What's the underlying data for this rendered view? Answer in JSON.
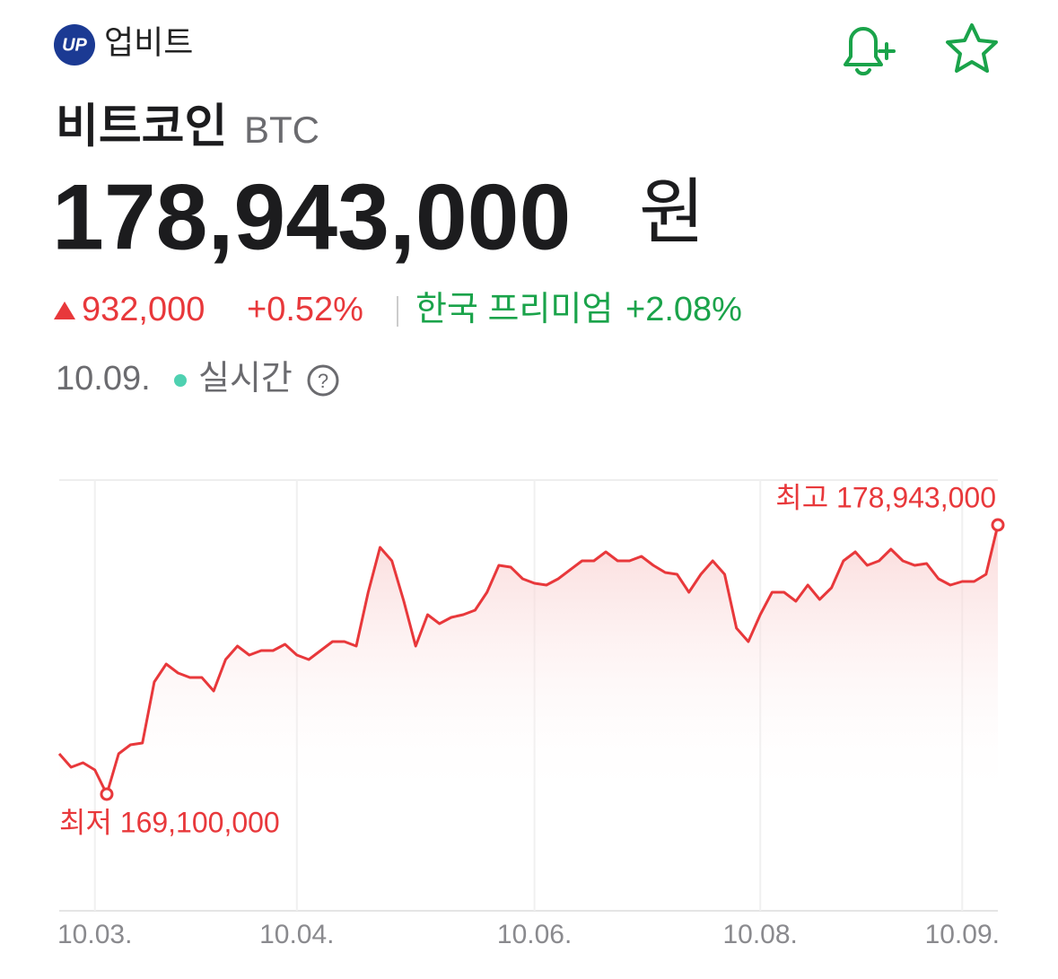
{
  "header": {
    "logo_text": "UP",
    "brand": "업비트"
  },
  "asset": {
    "name": "비트코인",
    "symbol": "BTC",
    "price": "178,943,000",
    "unit": "원"
  },
  "change": {
    "amount": "932,000",
    "percent": "+0.52%",
    "premium_label": "한국 프리미엄",
    "premium_value": "+2.08%"
  },
  "status": {
    "date": "10.09.",
    "live": "실시간"
  },
  "chart_data": {
    "type": "line",
    "color": "#e8383b",
    "grid": true,
    "annotations": [
      {
        "text": "최고 178,943,000"
      },
      {
        "text": "최저 169,100,000"
      }
    ],
    "categories": [
      null,
      null,
      null,
      "10.03.",
      null,
      null,
      null,
      null,
      null,
      null,
      null,
      null,
      null,
      null,
      null,
      null,
      null,
      null,
      null,
      null,
      "10.04.",
      null,
      null,
      null,
      null,
      null,
      null,
      null,
      null,
      null,
      null,
      null,
      null,
      null,
      null,
      null,
      null,
      null,
      null,
      null,
      "10.06.",
      null,
      null,
      null,
      null,
      null,
      null,
      null,
      null,
      null,
      null,
      null,
      null,
      null,
      null,
      null,
      null,
      null,
      null,
      "10.08.",
      null,
      null,
      null,
      null,
      null,
      null,
      null,
      null,
      null,
      null,
      null,
      null,
      null,
      null,
      null,
      null,
      "10.09.",
      null,
      null,
      null
    ],
    "values": [
      170576000,
      170084000,
      170248000,
      169986000,
      169100000,
      170576000,
      170905000,
      170970000,
      173201000,
      173857000,
      173529000,
      173365000,
      173365000,
      172873000,
      174022000,
      174514000,
      174186000,
      174350000,
      174350000,
      174579000,
      174186000,
      174022000,
      174350000,
      174678000,
      174678000,
      174514000,
      176482000,
      178123000,
      177631000,
      176154000,
      174514000,
      175662000,
      175334000,
      175564000,
      175662000,
      175826000,
      176482000,
      177467000,
      177401000,
      176974000,
      176810000,
      176745000,
      176974000,
      177303000,
      177631000,
      177631000,
      177959000,
      177631000,
      177631000,
      177795000,
      177467000,
      177204000,
      177138000,
      176482000,
      177138000,
      177631000,
      177138000,
      175170000,
      174678000,
      175662000,
      176482000,
      176482000,
      176154000,
      176745000,
      176220000,
      176646000,
      177631000,
      177959000,
      177467000,
      177631000,
      178057000,
      177631000,
      177467000,
      177532000,
      176974000,
      176745000,
      176876000,
      176876000,
      177138000,
      178943000
    ]
  }
}
